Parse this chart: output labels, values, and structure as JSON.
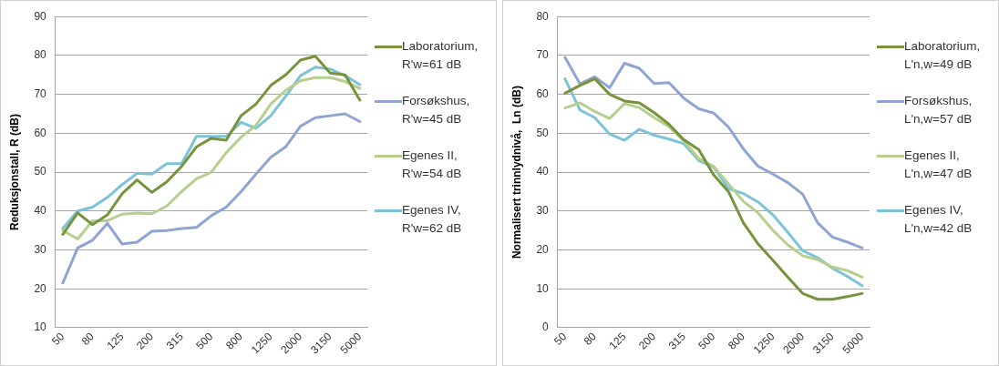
{
  "chart_data": [
    {
      "type": "line",
      "ylabel": "Reduksjonstall, R (dB)",
      "categories": [
        "50",
        null,
        "80",
        null,
        "125",
        null,
        "200",
        null,
        "315",
        null,
        "500",
        null,
        "800",
        null,
        "1250",
        null,
        "2000",
        null,
        "3150",
        null,
        "5000"
      ],
      "ylim": [
        10,
        90
      ],
      "yticks": [
        10,
        20,
        30,
        40,
        50,
        60,
        70,
        80,
        90
      ],
      "grid": "y",
      "legend": "right",
      "marker": "none",
      "series": [
        {
          "name": "Laboratorium, R'w=61 dB",
          "color": "#77933c",
          "values": [
            34,
            39.5,
            36.5,
            39,
            44.5,
            48,
            44.8,
            47.5,
            51.5,
            56.5,
            58.7,
            58.2,
            64.5,
            67.5,
            72.3,
            75,
            78.8,
            79.8,
            75.5,
            75,
            68.5
          ]
        },
        {
          "name": "Forsøkshus, R'w=45 dB",
          "color": "#8ea4d2",
          "values": [
            21.5,
            30.5,
            32.5,
            36.8,
            31.5,
            32,
            34.8,
            35,
            35.5,
            35.8,
            38.8,
            41,
            45,
            49.5,
            53.8,
            56.5,
            61.8,
            64,
            64.5,
            65,
            63
          ]
        },
        {
          "name": "Egenes II, R'w=54 dB",
          "color": "#b5cf8e",
          "values": [
            35,
            32.8,
            37.5,
            37.5,
            39.2,
            39.5,
            39.3,
            41.3,
            45,
            48.3,
            50,
            55,
            59,
            62,
            67.5,
            71,
            73.5,
            74.3,
            74.3,
            73.3,
            71.5
          ]
        },
        {
          "name": "Egenes IV, R'w=62 dB",
          "color": "#7cc2d8",
          "values": [
            35.5,
            40,
            41,
            43.5,
            46.8,
            49.7,
            49.5,
            52.2,
            52.2,
            59.2,
            59.2,
            59.2,
            62.8,
            61.3,
            64.5,
            69.5,
            74.8,
            77,
            76.5,
            74.8,
            72.5
          ]
        }
      ]
    },
    {
      "type": "line",
      "ylabel": "Normalisert trinnlydnivå,  Ln (dB)",
      "categories": [
        "50",
        null,
        "80",
        null,
        "125",
        null,
        "200",
        null,
        "315",
        null,
        "500",
        null,
        "800",
        null,
        "1250",
        null,
        "2000",
        null,
        "3150",
        null,
        "5000"
      ],
      "ylim": [
        0,
        80
      ],
      "yticks": [
        0,
        10,
        20,
        30,
        40,
        50,
        60,
        70,
        80
      ],
      "grid": "y",
      "legend": "right",
      "marker": "none",
      "series": [
        {
          "name": "Laboratorium, L'n,w=49 dB",
          "color": "#77933c",
          "values": [
            60.3,
            62.3,
            64,
            60,
            58.3,
            57.8,
            55.3,
            52.3,
            48.3,
            45.8,
            39.3,
            35,
            27,
            21.5,
            17.3,
            13,
            8.8,
            7.3,
            7.3,
            8,
            8.8
          ]
        },
        {
          "name": "Forsøkshus, L'n,w=57 dB",
          "color": "#8ea4d2",
          "values": [
            69.5,
            62.7,
            64.5,
            61.7,
            68,
            66.7,
            62.8,
            63,
            59,
            56.3,
            55.2,
            51.6,
            46,
            41.5,
            39.5,
            37.3,
            34.3,
            27,
            23.3,
            22,
            20.5
          ]
        },
        {
          "name": "Egenes II, L'n,w=47 dB",
          "color": "#b5cf8e",
          "values": [
            56.5,
            57.8,
            55.6,
            53.8,
            57.6,
            56.6,
            54,
            51.7,
            48,
            43.5,
            41.5,
            37,
            32.5,
            29.5,
            25,
            21.3,
            18.5,
            17.5,
            15.6,
            14.7,
            13
          ]
        },
        {
          "name": "Egenes IV, L'n,w=42 dB",
          "color": "#7cc2d8",
          "values": [
            64,
            56,
            54,
            49.8,
            48.2,
            51,
            49.5,
            48.5,
            47.3,
            43,
            41.3,
            35.8,
            34.5,
            32.3,
            29,
            24.5,
            19.8,
            18,
            15.3,
            13.2,
            10.8
          ]
        }
      ]
    }
  ]
}
